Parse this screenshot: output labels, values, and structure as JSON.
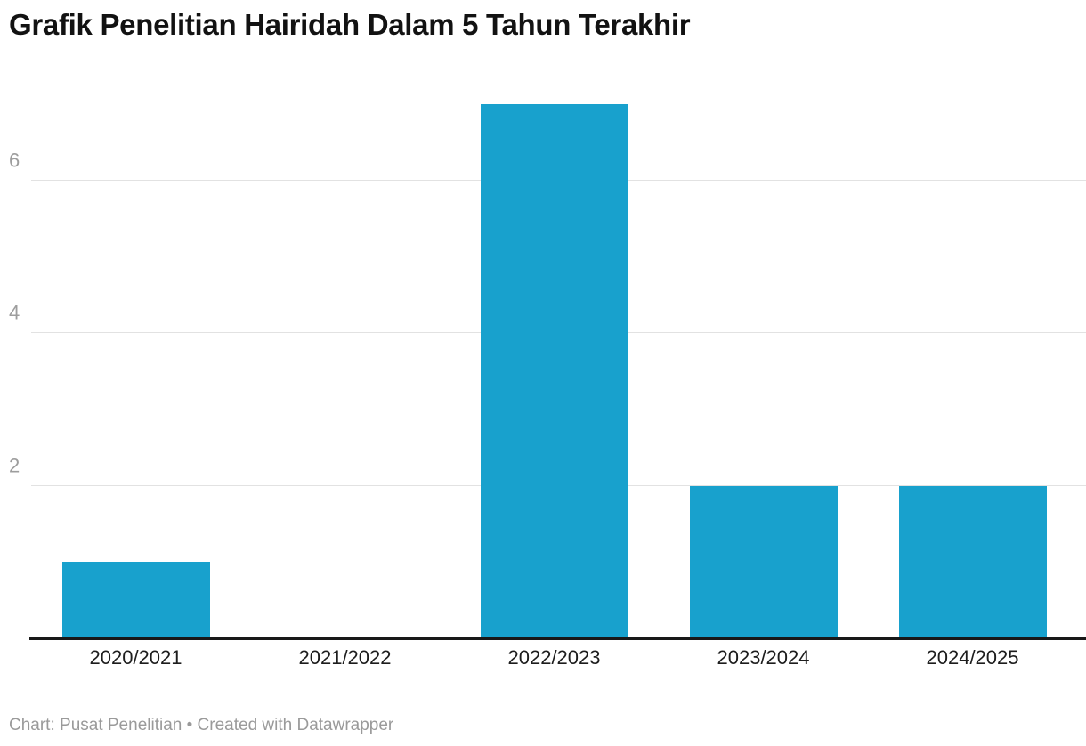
{
  "title": "Grafik Penelitian Hairidah Dalam 5 Tahun Terakhir",
  "footer": "Chart: Pusat Penelitian • Created with Datawrapper",
  "colors": {
    "bar": "#18a1cd",
    "grid": "#e2e2e2",
    "tick_label": "#9d9d9d",
    "axis": "#181818",
    "footer": "#9a9a9a"
  },
  "chart_data": {
    "type": "bar",
    "categories": [
      "2020/2021",
      "2021/2022",
      "2022/2023",
      "2023/2024",
      "2024/2025"
    ],
    "values": [
      1,
      0,
      7,
      2,
      2
    ],
    "title": "Grafik Penelitian Hairidah Dalam 5 Tahun Terakhir",
    "xlabel": "",
    "ylabel": "",
    "ylim": [
      0,
      7
    ],
    "yticks": [
      2,
      4,
      6
    ],
    "grid": "horizontal",
    "legend": "none",
    "source_note": "Chart: Pusat Penelitian",
    "credit": "Created with Datawrapper"
  }
}
